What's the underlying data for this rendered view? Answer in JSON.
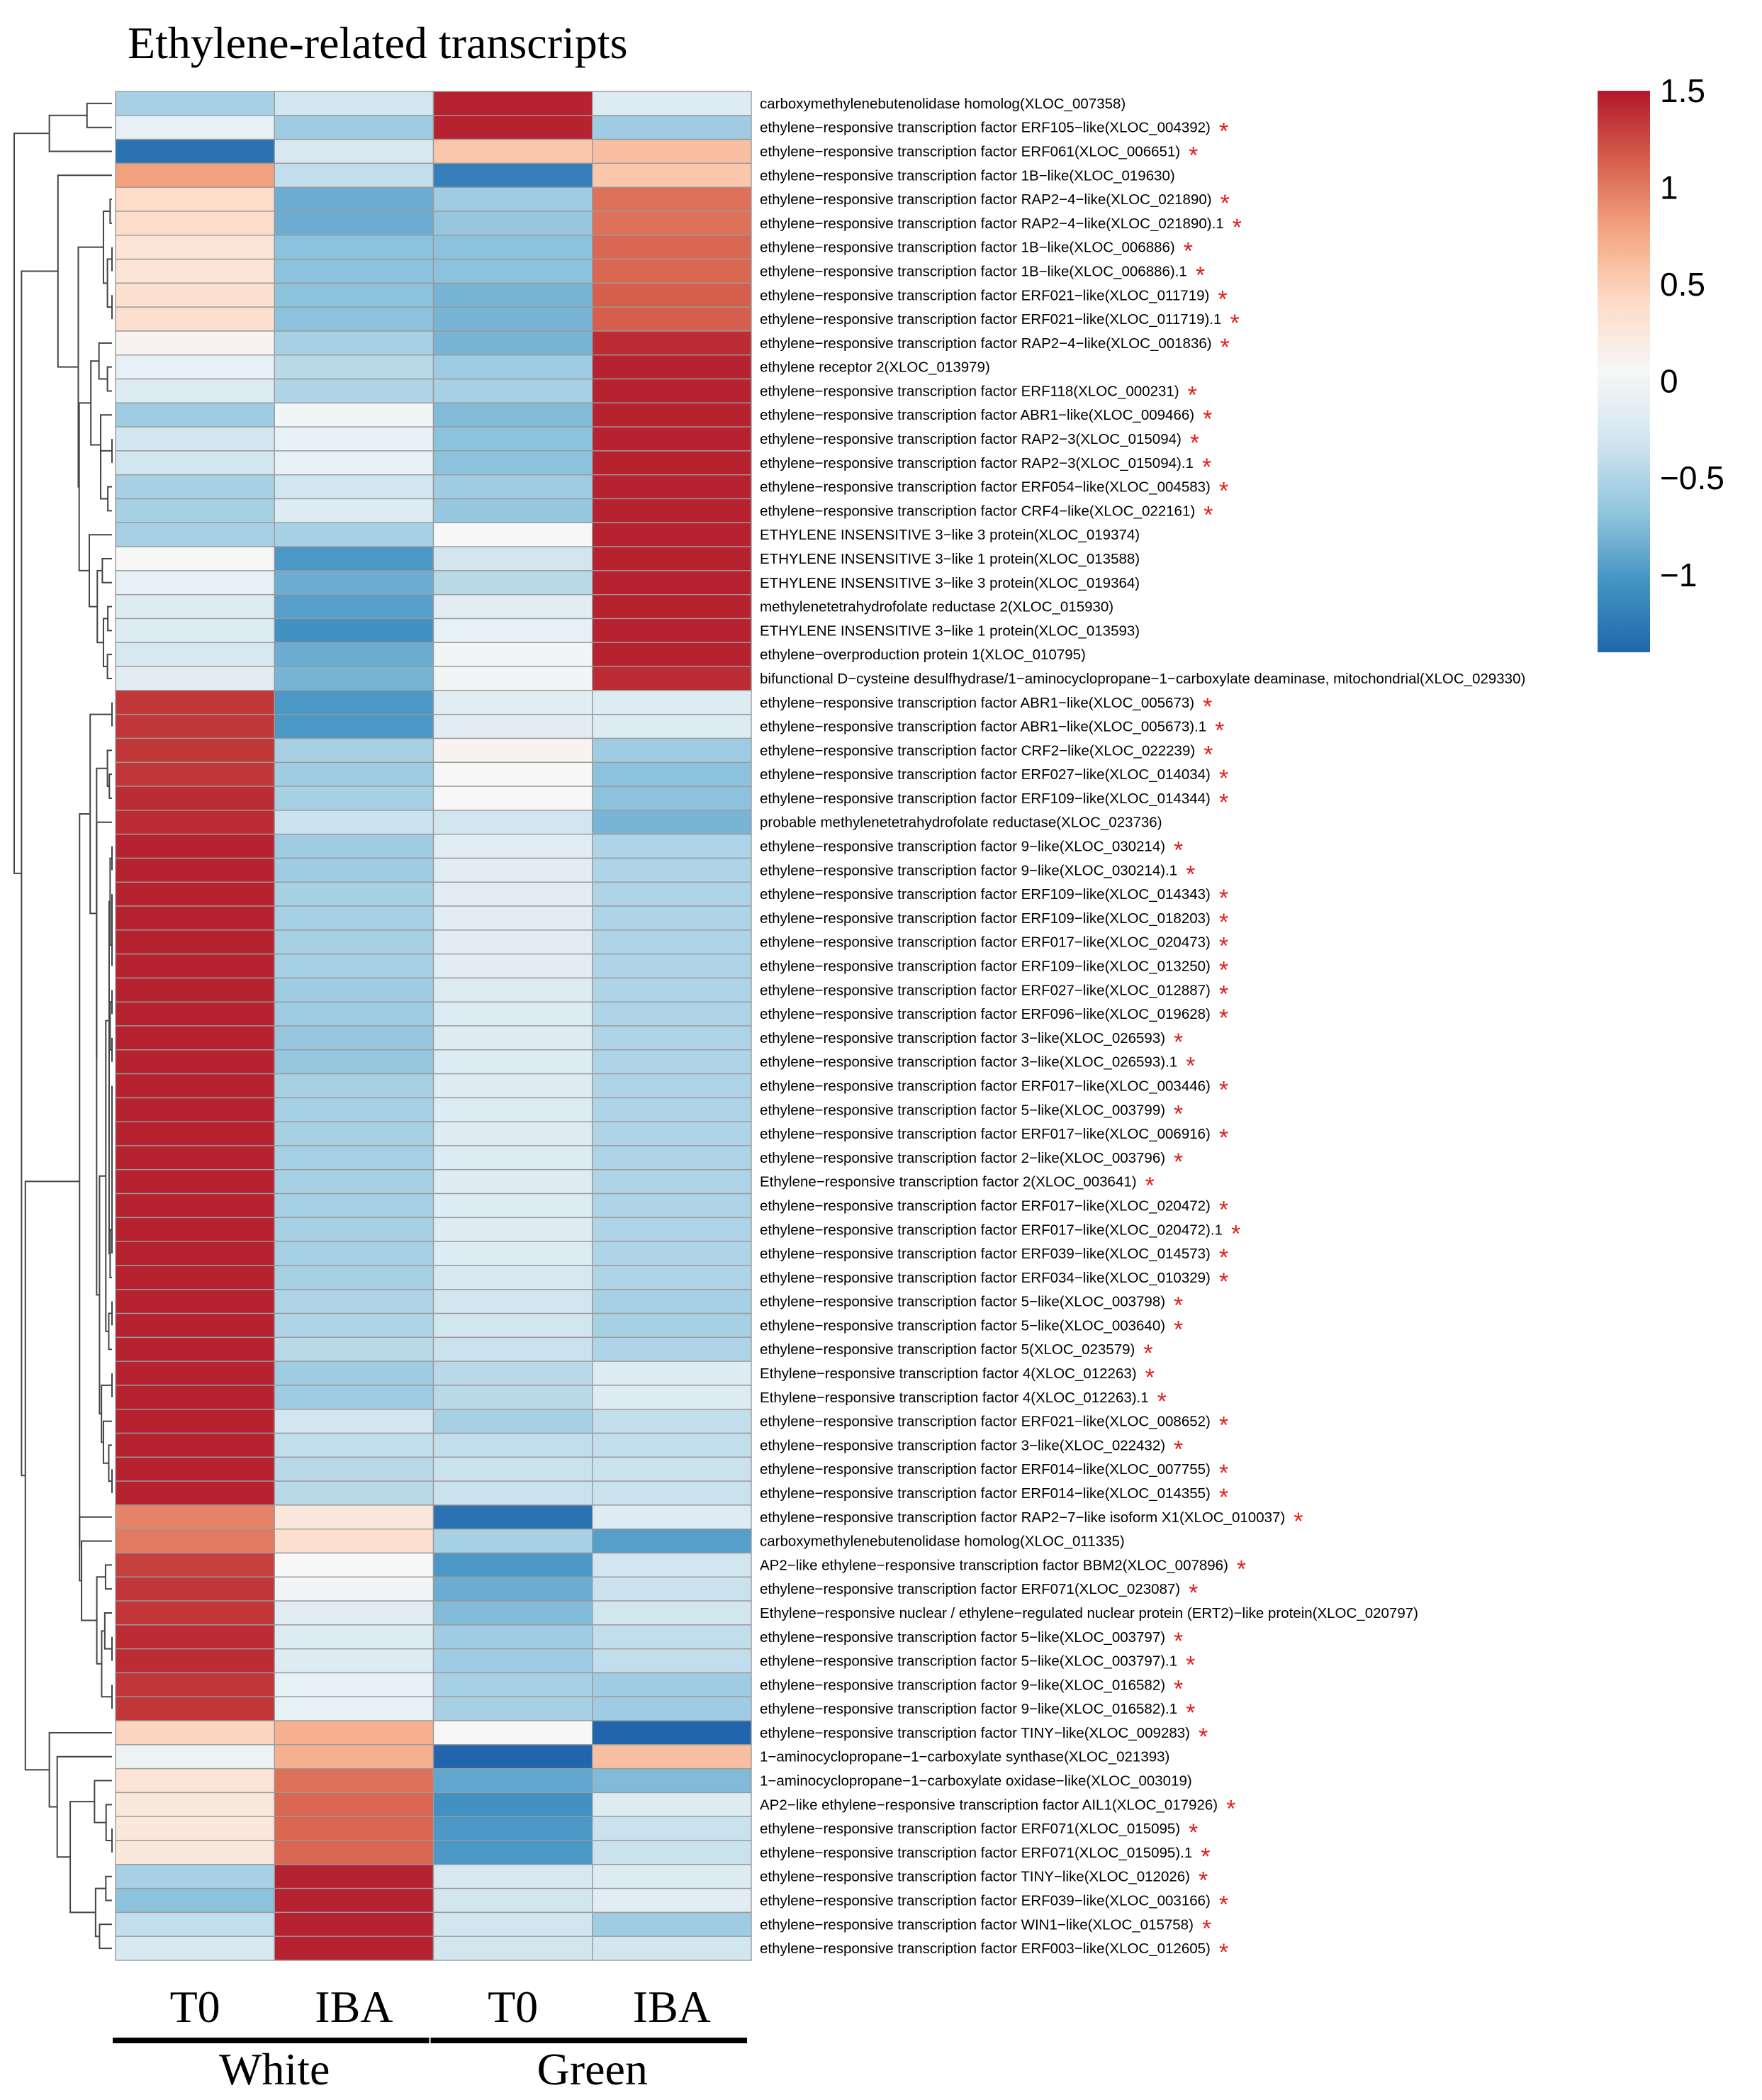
{
  "chart_data": {
    "type": "heatmap",
    "title": "Ethylene-related transcripts",
    "columns": [
      "T0",
      "IBA",
      "T0",
      "IBA"
    ],
    "groups": [
      {
        "name": "White",
        "columns": [
          0,
          1
        ]
      },
      {
        "name": "Green",
        "columns": [
          2,
          3
        ]
      }
    ],
    "colorbar": {
      "min": -1.4,
      "max": 1.5,
      "ticks": [
        {
          "value": 1.5,
          "label": "1.5"
        },
        {
          "value": 1,
          "label": "1"
        },
        {
          "value": 0.5,
          "label": "0.5"
        },
        {
          "value": 0,
          "label": "0"
        },
        {
          "value": -0.5,
          "label": "−0.5"
        },
        {
          "value": -1,
          "label": "−1"
        }
      ],
      "stops": [
        "#2166ac",
        "#4393c3",
        "#92c5de",
        "#d1e5f0",
        "#f7f7f7",
        "#fddbc7",
        "#f4a582",
        "#d6604d",
        "#b2182b"
      ]
    },
    "significance_marker": "*",
    "rows": [
      {
        "label": "carboxymethylenebutenolidase homolog(XLOC_007358)",
        "star": false,
        "values": [
          -0.55,
          -0.3,
          1.45,
          -0.2
        ]
      },
      {
        "label": "ethylene−responsive transcription factor ERF105−like(XLOC_004392)",
        "star": true,
        "values": [
          -0.1,
          -0.6,
          1.45,
          -0.6
        ]
      },
      {
        "label": "ethylene−responsive transcription factor ERF061(XLOC_006651)",
        "star": true,
        "values": [
          -1.3,
          -0.25,
          0.55,
          0.6
        ]
      },
      {
        "label": "ethylene−responsive transcription factor 1B−like(XLOC_019630)",
        "star": false,
        "values": [
          0.8,
          -0.4,
          -1.2,
          0.55
        ]
      },
      {
        "label": "ethylene−responsive transcription factor RAP2−4−like(XLOC_021890)",
        "star": true,
        "values": [
          0.4,
          -0.85,
          -0.6,
          1.05
        ]
      },
      {
        "label": "ethylene−responsive transcription factor RAP2−4−like(XLOC_021890).1",
        "star": true,
        "values": [
          0.4,
          -0.85,
          -0.65,
          1.05
        ]
      },
      {
        "label": "ethylene−responsive transcription factor 1B−like(XLOC_006886)",
        "star": true,
        "values": [
          0.3,
          -0.7,
          -0.7,
          1.1
        ]
      },
      {
        "label": "ethylene−responsive transcription factor 1B−like(XLOC_006886).1",
        "star": true,
        "values": [
          0.3,
          -0.7,
          -0.7,
          1.1
        ]
      },
      {
        "label": "ethylene−responsive transcription factor ERF021−like(XLOC_011719)",
        "star": true,
        "values": [
          0.35,
          -0.7,
          -0.8,
          1.15
        ]
      },
      {
        "label": "ethylene−responsive transcription factor ERF021−like(XLOC_011719).1",
        "star": true,
        "values": [
          0.35,
          -0.7,
          -0.8,
          1.15
        ]
      },
      {
        "label": "ethylene−responsive transcription factor RAP2−4−like(XLOC_001836)",
        "star": true,
        "values": [
          0.1,
          -0.55,
          -0.8,
          1.4
        ]
      },
      {
        "label": "ethylene receptor 2(XLOC_013979)",
        "star": false,
        "values": [
          -0.1,
          -0.45,
          -0.6,
          1.45
        ]
      },
      {
        "label": "ethylene−responsive transcription factor ERF118(XLOC_000231)",
        "star": true,
        "values": [
          -0.2,
          -0.5,
          -0.55,
          1.45
        ]
      },
      {
        "label": "ethylene−responsive transcription factor ABR1−like(XLOC_009466)",
        "star": true,
        "values": [
          -0.6,
          0.0,
          -0.75,
          1.45
        ]
      },
      {
        "label": "ethylene−responsive transcription factor RAP2−3(XLOC_015094)",
        "star": true,
        "values": [
          -0.3,
          -0.1,
          -0.7,
          1.45
        ]
      },
      {
        "label": "ethylene−responsive transcription factor RAP2−3(XLOC_015094).1",
        "star": true,
        "values": [
          -0.3,
          -0.1,
          -0.7,
          1.45
        ]
      },
      {
        "label": "ethylene−responsive transcription factor ERF054−like(XLOC_004583)",
        "star": true,
        "values": [
          -0.55,
          -0.3,
          -0.6,
          1.45
        ]
      },
      {
        "label": "ethylene−responsive transcription factor CRF4−like(XLOC_022161)",
        "star": true,
        "values": [
          -0.55,
          -0.2,
          -0.65,
          1.45
        ]
      },
      {
        "label": "ETHYLENE INSENSITIVE 3−like 3 protein(XLOC_019374)",
        "star": false,
        "values": [
          -0.55,
          -0.55,
          0.05,
          1.45
        ]
      },
      {
        "label": "ETHYLENE INSENSITIVE 3−like 1 protein(XLOC_013588)",
        "star": false,
        "values": [
          0.05,
          -1.0,
          -0.3,
          1.45
        ]
      },
      {
        "label": "ETHYLENE INSENSITIVE 3−like 3 protein(XLOC_019364)",
        "star": false,
        "values": [
          -0.1,
          -0.85,
          -0.45,
          1.45
        ]
      },
      {
        "label": "methylenetetrahydrofolate reductase 2(XLOC_015930)",
        "star": false,
        "values": [
          -0.2,
          -0.95,
          -0.15,
          1.45
        ]
      },
      {
        "label": "ETHYLENE INSENSITIVE 3−like 1 protein(XLOC_013593)",
        "star": false,
        "values": [
          -0.2,
          -1.05,
          -0.1,
          1.45
        ]
      },
      {
        "label": "ethylene−overproduction protein 1(XLOC_010795)",
        "star": false,
        "values": [
          -0.25,
          -0.85,
          0.0,
          1.45
        ]
      },
      {
        "label": "bifunctional D−cysteine desulfhydrase/1−aminocyclopropane−1−carboxylate deaminase, mitochondrial(XLOC_029330)",
        "star": false,
        "values": [
          -0.15,
          -0.8,
          0.0,
          1.4
        ]
      },
      {
        "label": "ethylene−responsive transcription factor ABR1−like(XLOC_005673)",
        "star": true,
        "values": [
          1.35,
          -1.0,
          -0.15,
          -0.2
        ]
      },
      {
        "label": "ethylene−responsive transcription factor ABR1−like(XLOC_005673).1",
        "star": true,
        "values": [
          1.35,
          -1.0,
          -0.15,
          -0.2
        ]
      },
      {
        "label": "ethylene−responsive transcription factor CRF2−like(XLOC_022239)",
        "star": true,
        "values": [
          1.35,
          -0.55,
          0.1,
          -0.6
        ]
      },
      {
        "label": "ethylene−responsive transcription factor ERF027−like(XLOC_014034)",
        "star": true,
        "values": [
          1.35,
          -0.6,
          0.05,
          -0.7
        ]
      },
      {
        "label": "ethylene−responsive transcription factor ERF109−like(XLOC_014344)",
        "star": true,
        "values": [
          1.4,
          -0.55,
          0.05,
          -0.7
        ]
      },
      {
        "label": "probable methylenetetrahydrofolate reductase(XLOC_023736)",
        "star": false,
        "values": [
          1.4,
          -0.35,
          -0.3,
          -0.8
        ]
      },
      {
        "label": "ethylene−responsive transcription factor 9−like(XLOC_030214)",
        "star": true,
        "values": [
          1.45,
          -0.6,
          -0.15,
          -0.5
        ]
      },
      {
        "label": "ethylene−responsive transcription factor 9−like(XLOC_030214).1",
        "star": true,
        "values": [
          1.45,
          -0.6,
          -0.15,
          -0.5
        ]
      },
      {
        "label": "ethylene−responsive transcription factor ERF109−like(XLOC_014343)",
        "star": true,
        "values": [
          1.45,
          -0.55,
          -0.15,
          -0.5
        ]
      },
      {
        "label": "ethylene−responsive transcription factor ERF109−like(XLOC_018203)",
        "star": true,
        "values": [
          1.45,
          -0.55,
          -0.15,
          -0.5
        ]
      },
      {
        "label": "ethylene−responsive transcription factor ERF017−like(XLOC_020473)",
        "star": true,
        "values": [
          1.45,
          -0.55,
          -0.15,
          -0.5
        ]
      },
      {
        "label": "ethylene−responsive transcription factor ERF109−like(XLOC_013250)",
        "star": true,
        "values": [
          1.45,
          -0.55,
          -0.15,
          -0.5
        ]
      },
      {
        "label": "ethylene−responsive transcription factor ERF027−like(XLOC_012887)",
        "star": true,
        "values": [
          1.45,
          -0.6,
          -0.2,
          -0.5
        ]
      },
      {
        "label": "ethylene−responsive transcription factor ERF096−like(XLOC_019628)",
        "star": true,
        "values": [
          1.45,
          -0.6,
          -0.2,
          -0.5
        ]
      },
      {
        "label": "ethylene−responsive transcription factor 3−like(XLOC_026593)",
        "star": true,
        "values": [
          1.45,
          -0.65,
          -0.2,
          -0.5
        ]
      },
      {
        "label": "ethylene−responsive transcription factor 3−like(XLOC_026593).1",
        "star": true,
        "values": [
          1.45,
          -0.65,
          -0.2,
          -0.5
        ]
      },
      {
        "label": "ethylene−responsive transcription factor ERF017−like(XLOC_003446)",
        "star": true,
        "values": [
          1.45,
          -0.55,
          -0.2,
          -0.5
        ]
      },
      {
        "label": "ethylene−responsive transcription factor 5−like(XLOC_003799)",
        "star": true,
        "values": [
          1.45,
          -0.55,
          -0.2,
          -0.5
        ]
      },
      {
        "label": "ethylene−responsive transcription factor ERF017−like(XLOC_006916)",
        "star": true,
        "values": [
          1.45,
          -0.55,
          -0.2,
          -0.5
        ]
      },
      {
        "label": "ethylene−responsive transcription factor 2−like(XLOC_003796)",
        "star": true,
        "values": [
          1.45,
          -0.55,
          -0.2,
          -0.5
        ]
      },
      {
        "label": "Ethylene−responsive transcription factor 2(XLOC_003641)",
        "star": true,
        "values": [
          1.45,
          -0.55,
          -0.2,
          -0.5
        ]
      },
      {
        "label": "ethylene−responsive transcription factor ERF017−like(XLOC_020472)",
        "star": true,
        "values": [
          1.45,
          -0.55,
          -0.2,
          -0.5
        ]
      },
      {
        "label": "ethylene−responsive transcription factor ERF017−like(XLOC_020472).1",
        "star": true,
        "values": [
          1.45,
          -0.55,
          -0.2,
          -0.5
        ]
      },
      {
        "label": "ethylene−responsive transcription factor ERF039−like(XLOC_014573)",
        "star": true,
        "values": [
          1.45,
          -0.55,
          -0.2,
          -0.5
        ]
      },
      {
        "label": "ethylene−responsive transcription factor ERF034−like(XLOC_010329)",
        "star": true,
        "values": [
          1.45,
          -0.55,
          -0.25,
          -0.5
        ]
      },
      {
        "label": "ethylene−responsive transcription factor 5−like(XLOC_003798)",
        "star": true,
        "values": [
          1.45,
          -0.5,
          -0.3,
          -0.55
        ]
      },
      {
        "label": "ethylene−responsive transcription factor 5−like(XLOC_003640)",
        "star": true,
        "values": [
          1.45,
          -0.5,
          -0.3,
          -0.55
        ]
      },
      {
        "label": "ethylene−responsive transcription factor 5(XLOC_023579)",
        "star": true,
        "values": [
          1.45,
          -0.45,
          -0.35,
          -0.5
        ]
      },
      {
        "label": "Ethylene−responsive transcription factor 4(XLOC_012263)",
        "star": true,
        "values": [
          1.45,
          -0.6,
          -0.45,
          -0.2
        ]
      },
      {
        "label": "Ethylene−responsive transcription factor 4(XLOC_012263).1",
        "star": true,
        "values": [
          1.45,
          -0.6,
          -0.45,
          -0.2
        ]
      },
      {
        "label": "ethylene−responsive transcription factor ERF021−like(XLOC_008652)",
        "star": true,
        "values": [
          1.45,
          -0.3,
          -0.55,
          -0.4
        ]
      },
      {
        "label": "ethylene−responsive transcription factor 3−like(XLOC_022432)",
        "star": true,
        "values": [
          1.45,
          -0.4,
          -0.4,
          -0.4
        ]
      },
      {
        "label": "ethylene−responsive transcription factor ERF014−like(XLOC_007755)",
        "star": true,
        "values": [
          1.45,
          -0.45,
          -0.35,
          -0.35
        ]
      },
      {
        "label": "ethylene−responsive transcription factor ERF014−like(XLOC_014355)",
        "star": true,
        "values": [
          1.45,
          -0.45,
          -0.35,
          -0.35
        ]
      },
      {
        "label": "ethylene−responsive transcription factor RAP2−7−like isoform X1(XLOC_010037)",
        "star": true,
        "values": [
          0.95,
          0.25,
          -1.3,
          -0.2
        ]
      },
      {
        "label": "carboxymethylenebutenolidase homolog(XLOC_011335)",
        "star": false,
        "values": [
          1.0,
          0.35,
          -0.55,
          -0.95
        ]
      },
      {
        "label": "AP2−like ethylene−responsive transcription factor BBM2(XLOC_007896)",
        "star": true,
        "values": [
          1.3,
          0.05,
          -1.0,
          -0.3
        ]
      },
      {
        "label": "ethylene−responsive transcription factor ERF071(XLOC_023087)",
        "star": true,
        "values": [
          1.35,
          0.0,
          -0.85,
          -0.35
        ]
      },
      {
        "label": "Ethylene−responsive nuclear / ethylene−regulated nuclear protein (ERT2)−like protein(XLOC_020797)",
        "star": false,
        "values": [
          1.35,
          -0.15,
          -0.75,
          -0.3
        ]
      },
      {
        "label": "ethylene−responsive transcription factor 5−like(XLOC_003797)",
        "star": true,
        "values": [
          1.4,
          -0.2,
          -0.6,
          -0.4
        ]
      },
      {
        "label": "ethylene−responsive transcription factor 5−like(XLOC_003797).1",
        "star": true,
        "values": [
          1.4,
          -0.2,
          -0.6,
          -0.4
        ]
      },
      {
        "label": "ethylene−responsive transcription factor 9−like(XLOC_016582)",
        "star": true,
        "values": [
          1.35,
          -0.1,
          -0.55,
          -0.6
        ]
      },
      {
        "label": "ethylene−responsive transcription factor 9−like(XLOC_016582).1",
        "star": true,
        "values": [
          1.35,
          -0.1,
          -0.55,
          -0.6
        ]
      },
      {
        "label": "ethylene−responsive transcription factor TINY−like(XLOC_009283)",
        "star": true,
        "values": [
          0.45,
          0.7,
          0.05,
          -1.4
        ]
      },
      {
        "label": "1−aminocyclopropane−1−carboxylate synthase(XLOC_021393)",
        "star": false,
        "values": [
          -0.05,
          0.7,
          -1.45,
          0.6
        ]
      },
      {
        "label": "1−aminocyclopropane−1−carboxylate oxidase−like(XLOC_003019)",
        "star": false,
        "values": [
          0.3,
          1.05,
          -0.9,
          -0.75
        ]
      },
      {
        "label": "AP2−like ethylene−responsive transcription factor AIL1(XLOC_017926)",
        "star": true,
        "values": [
          0.25,
          1.1,
          -1.05,
          -0.2
        ]
      },
      {
        "label": "ethylene−responsive transcription factor ERF071(XLOC_015095)",
        "star": true,
        "values": [
          0.25,
          1.1,
          -1.0,
          -0.35
        ]
      },
      {
        "label": "ethylene−responsive transcription factor ERF071(XLOC_015095).1",
        "star": true,
        "values": [
          0.25,
          1.1,
          -1.0,
          -0.35
        ]
      },
      {
        "label": "ethylene−responsive transcription factor TINY−like(XLOC_012026)",
        "star": true,
        "values": [
          -0.55,
          1.45,
          -0.25,
          -0.2
        ]
      },
      {
        "label": "ethylene−responsive transcription factor ERF039−like(XLOC_003166)",
        "star": true,
        "values": [
          -0.7,
          1.45,
          -0.3,
          -0.15
        ]
      },
      {
        "label": "ethylene−responsive transcription factor WIN1−like(XLOC_015758)",
        "star": true,
        "values": [
          -0.4,
          1.45,
          -0.3,
          -0.6
        ]
      },
      {
        "label": "ethylene−responsive transcription factor ERF003−like(XLOC_012605)",
        "star": true,
        "values": [
          -0.25,
          1.45,
          -0.3,
          -0.3
        ]
      }
    ]
  }
}
